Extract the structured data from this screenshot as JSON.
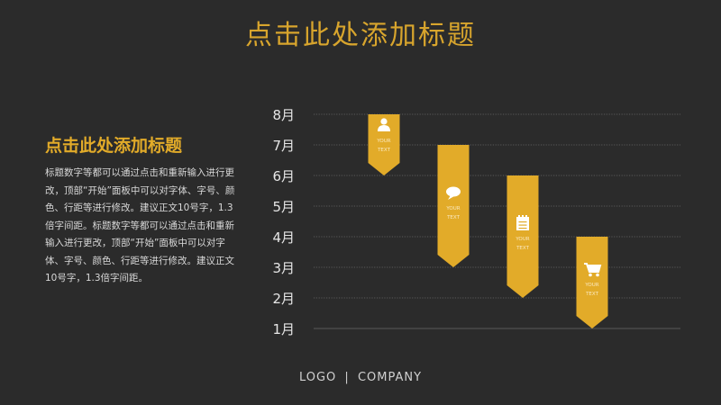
{
  "header": {
    "title": "点击此处添加标题"
  },
  "content": {
    "subtitle": "点击此处添加标题",
    "paragraph": "标题数字等都可以通过点击和重新输入进行更改，顶部“开始”面板中可以对字体、字号、颜色、行距等进行修改。建议正文10号字，1.3倍字间距。标题数字等都可以通过点击和重新输入进行更改，顶部“开始”面板中可以对字体、字号、颜色、行距等进行修改。建议正文10号字，1.3倍字间距。"
  },
  "colors": {
    "accent": "#e2ab29",
    "background": "#2b2b2b",
    "grid": "#6a6a6a",
    "text": "#d9d9d9"
  },
  "chart_data": {
    "type": "bar",
    "y_categories": [
      "1月",
      "2月",
      "3月",
      "4月",
      "5月",
      "6月",
      "7月",
      "8月"
    ],
    "ylim": [
      "1月",
      "8月"
    ],
    "grid": true,
    "series": [
      {
        "label": "YOUR TEXT",
        "icon": "person-icon",
        "top": "8月",
        "bottom": "6月"
      },
      {
        "label": "YOUR TEXT",
        "icon": "speech-bubble-icon",
        "top": "7月",
        "bottom": "3月"
      },
      {
        "label": "YOUR TEXT",
        "icon": "notepad-icon",
        "top": "6月",
        "bottom": "2月"
      },
      {
        "label": "YOUR TEXT",
        "icon": "shopping-cart-icon",
        "top": "4月",
        "bottom": "1月"
      }
    ]
  },
  "footer": {
    "logo": "LOGO",
    "separator": "|",
    "company": "COMPANY"
  }
}
